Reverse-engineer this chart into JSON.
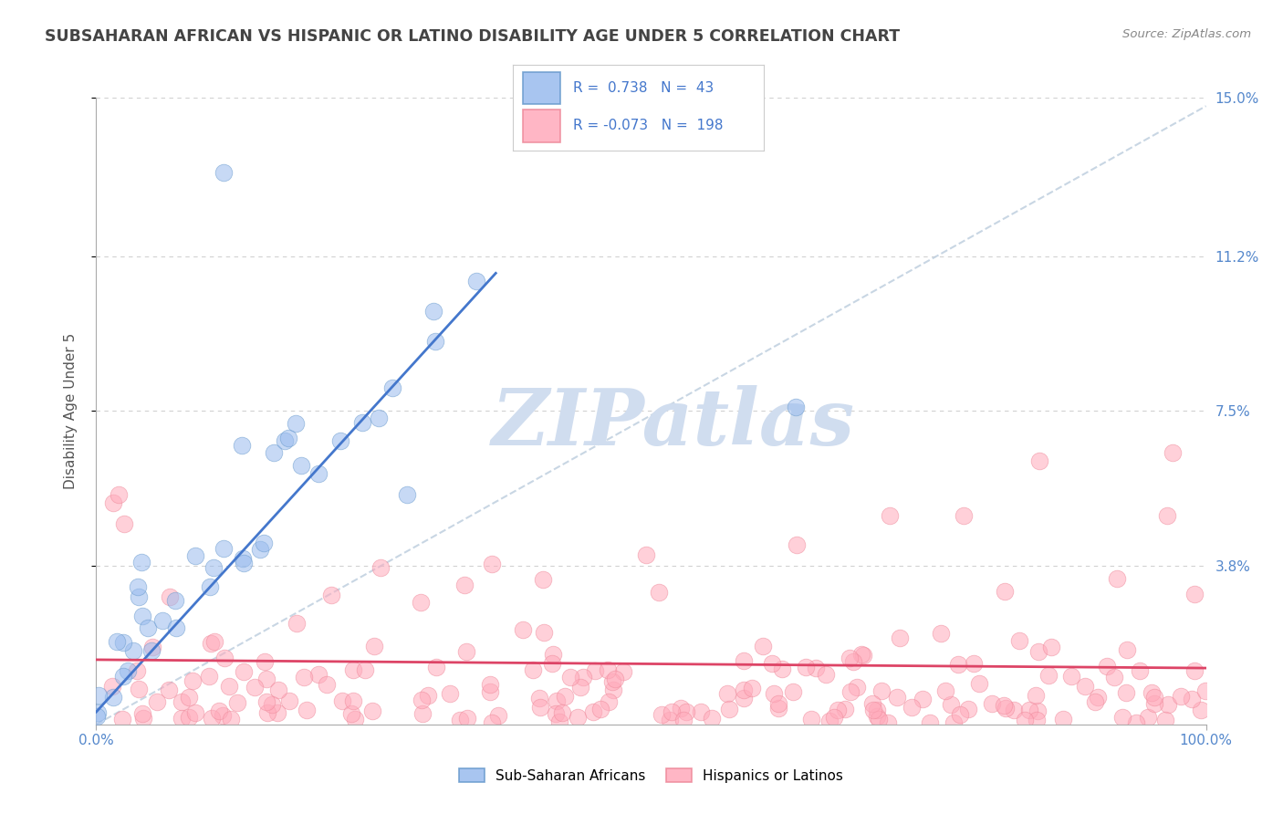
{
  "title": "SUBSAHARAN AFRICAN VS HISPANIC OR LATINO DISABILITY AGE UNDER 5 CORRELATION CHART",
  "source": "Source: ZipAtlas.com",
  "ylabel": "Disability Age Under 5",
  "xlim": [
    0,
    100
  ],
  "ylim": [
    0,
    15
  ],
  "yticks": [
    3.8,
    7.5,
    11.2,
    15.0
  ],
  "ytick_labels": [
    "3.8%",
    "7.5%",
    "11.2%",
    "15.0%"
  ],
  "xtick_labels": [
    "0.0%",
    "100.0%"
  ],
  "blue_R": 0.738,
  "blue_N": 43,
  "pink_R": -0.073,
  "pink_N": 198,
  "blue_scatter_color": "#99BBEE",
  "blue_edge_color": "#6699CC",
  "pink_scatter_color": "#FFAABB",
  "pink_edge_color": "#EE8899",
  "blue_line_color": "#4477CC",
  "pink_line_color": "#DD4466",
  "ref_line_color": "#BBCCDD",
  "bg_color": "#FFFFFF",
  "grid_color": "#CCCCCC",
  "title_color": "#444444",
  "axis_label_color": "#5588CC",
  "watermark_color": "#D0DDEF",
  "legend_text_color": "#4477CC",
  "blue_trend_x0": 0,
  "blue_trend_y0": 0.3,
  "blue_trend_x1": 36,
  "blue_trend_y1": 10.8,
  "pink_trend_y0": 1.55,
  "pink_trend_y1": 1.35,
  "ref_slope": 0.148
}
